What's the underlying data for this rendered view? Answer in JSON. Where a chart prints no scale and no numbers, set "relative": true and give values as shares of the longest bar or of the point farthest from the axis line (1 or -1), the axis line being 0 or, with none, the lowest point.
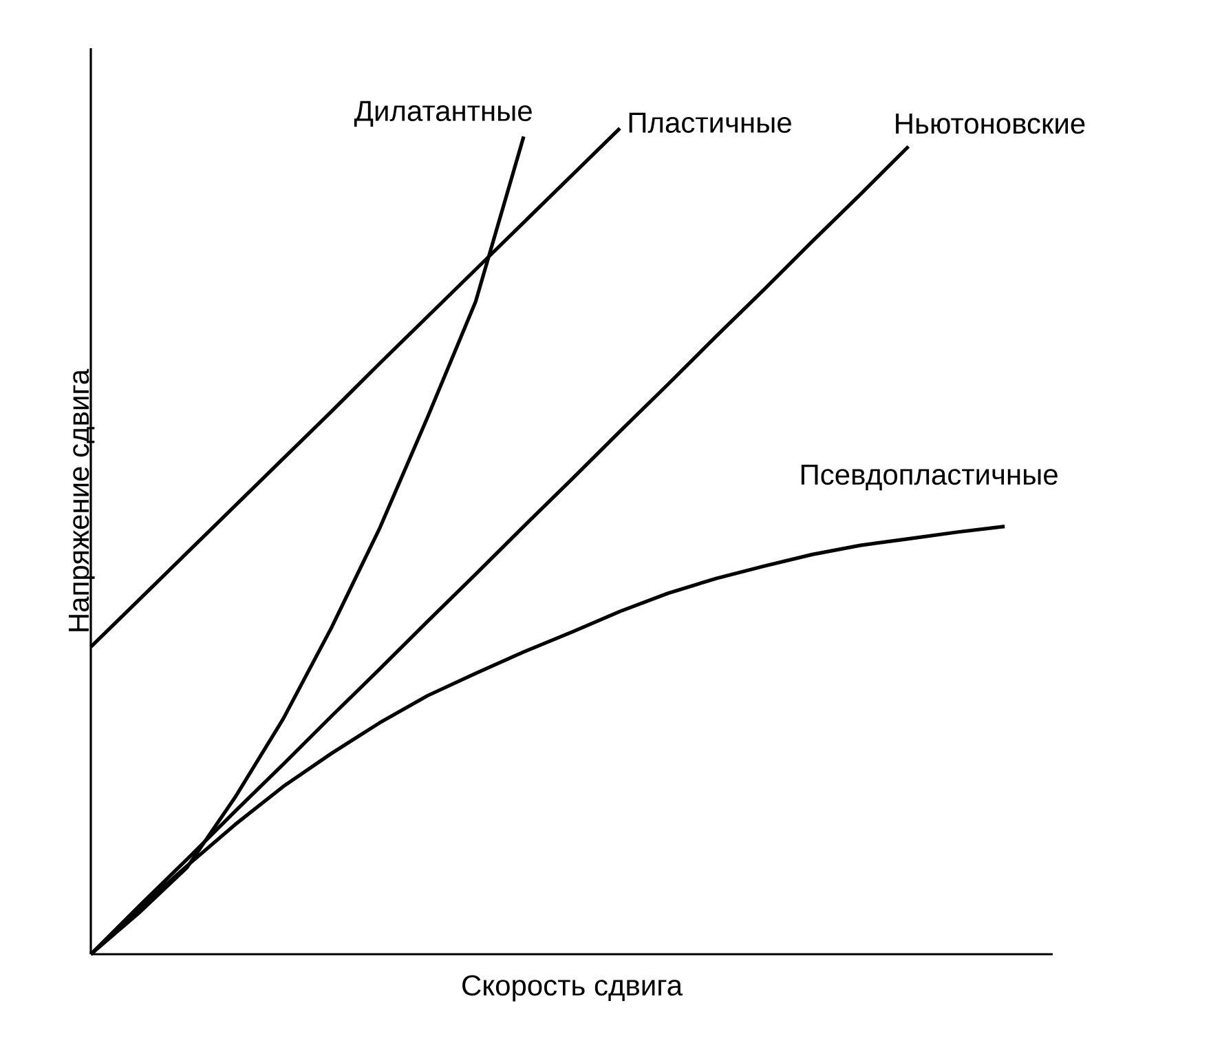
{
  "chart_data": {
    "type": "line",
    "relative": true,
    "xlabel": "Скорость сдвига",
    "ylabel": "Напряжение сдвига",
    "tick_labels": false,
    "legend": false,
    "marker": "none",
    "line_style": "solid",
    "categories": [
      null,
      null,
      null,
      null,
      null,
      null,
      null,
      null,
      null,
      null,
      null,
      null,
      null,
      null,
      null,
      null,
      null,
      null,
      null,
      null,
      null
    ],
    "series": [
      {
        "name": "Дилатантные",
        "color": "#000000",
        "values": [
          0,
          0.05,
          0.105,
          0.19,
          0.285,
          0.395,
          0.515,
          0.65,
          0.79,
          0.99,
          null,
          null,
          null,
          null,
          null,
          null,
          null,
          null,
          null,
          null,
          null
        ]
      },
      {
        "name": "Пластичные",
        "color": "#000000",
        "values": [
          0.372,
          0.429,
          0.486,
          0.543,
          0.6,
          0.657,
          0.715,
          0.772,
          0.829,
          0.886,
          0.943,
          1.0,
          null,
          null,
          null,
          null,
          null,
          null,
          null,
          null,
          null
        ]
      },
      {
        "name": "Ньютоновские",
        "color": "#000000",
        "values": [
          0,
          0.058,
          0.115,
          0.173,
          0.23,
          0.288,
          0.345,
          0.403,
          0.46,
          0.518,
          0.575,
          0.633,
          0.69,
          0.748,
          0.805,
          0.863,
          0.92,
          0.978,
          null,
          null,
          null
        ]
      },
      {
        "name": "Псевдопластичные",
        "color": "#000000",
        "values": [
          0,
          0.055,
          0.107,
          0.157,
          0.203,
          0.243,
          0.28,
          0.313,
          0.34,
          0.366,
          0.39,
          0.415,
          0.437,
          0.455,
          0.47,
          0.484,
          0.495,
          0.503,
          0.511,
          0.518,
          null
        ]
      }
    ]
  }
}
